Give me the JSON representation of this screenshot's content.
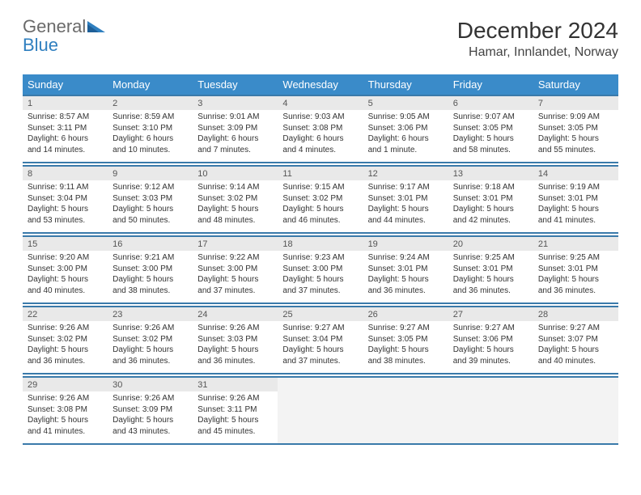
{
  "brand": {
    "general": "General",
    "blue": "Blue"
  },
  "header": {
    "month_title": "December 2024",
    "location": "Hamar, Innlandet, Norway"
  },
  "weekdays": [
    "Sunday",
    "Monday",
    "Tuesday",
    "Wednesday",
    "Thursday",
    "Friday",
    "Saturday"
  ],
  "colors": {
    "header_bg": "#3a8bc9",
    "header_text": "#ffffff",
    "rule": "#3a7aaa",
    "daynum_bg": "#e9e9e9",
    "logo_gray": "#6a6a6a",
    "logo_blue": "#2f7fbf"
  },
  "weeks": [
    [
      {
        "n": "1",
        "sr": "8:57 AM",
        "ss": "3:11 PM",
        "dl": "6 hours and 14 minutes."
      },
      {
        "n": "2",
        "sr": "8:59 AM",
        "ss": "3:10 PM",
        "dl": "6 hours and 10 minutes."
      },
      {
        "n": "3",
        "sr": "9:01 AM",
        "ss": "3:09 PM",
        "dl": "6 hours and 7 minutes."
      },
      {
        "n": "4",
        "sr": "9:03 AM",
        "ss": "3:08 PM",
        "dl": "6 hours and 4 minutes."
      },
      {
        "n": "5",
        "sr": "9:05 AM",
        "ss": "3:06 PM",
        "dl": "6 hours and 1 minute."
      },
      {
        "n": "6",
        "sr": "9:07 AM",
        "ss": "3:05 PM",
        "dl": "5 hours and 58 minutes."
      },
      {
        "n": "7",
        "sr": "9:09 AM",
        "ss": "3:05 PM",
        "dl": "5 hours and 55 minutes."
      }
    ],
    [
      {
        "n": "8",
        "sr": "9:11 AM",
        "ss": "3:04 PM",
        "dl": "5 hours and 53 minutes."
      },
      {
        "n": "9",
        "sr": "9:12 AM",
        "ss": "3:03 PM",
        "dl": "5 hours and 50 minutes."
      },
      {
        "n": "10",
        "sr": "9:14 AM",
        "ss": "3:02 PM",
        "dl": "5 hours and 48 minutes."
      },
      {
        "n": "11",
        "sr": "9:15 AM",
        "ss": "3:02 PM",
        "dl": "5 hours and 46 minutes."
      },
      {
        "n": "12",
        "sr": "9:17 AM",
        "ss": "3:01 PM",
        "dl": "5 hours and 44 minutes."
      },
      {
        "n": "13",
        "sr": "9:18 AM",
        "ss": "3:01 PM",
        "dl": "5 hours and 42 minutes."
      },
      {
        "n": "14",
        "sr": "9:19 AM",
        "ss": "3:01 PM",
        "dl": "5 hours and 41 minutes."
      }
    ],
    [
      {
        "n": "15",
        "sr": "9:20 AM",
        "ss": "3:00 PM",
        "dl": "5 hours and 40 minutes."
      },
      {
        "n": "16",
        "sr": "9:21 AM",
        "ss": "3:00 PM",
        "dl": "5 hours and 38 minutes."
      },
      {
        "n": "17",
        "sr": "9:22 AM",
        "ss": "3:00 PM",
        "dl": "5 hours and 37 minutes."
      },
      {
        "n": "18",
        "sr": "9:23 AM",
        "ss": "3:00 PM",
        "dl": "5 hours and 37 minutes."
      },
      {
        "n": "19",
        "sr": "9:24 AM",
        "ss": "3:01 PM",
        "dl": "5 hours and 36 minutes."
      },
      {
        "n": "20",
        "sr": "9:25 AM",
        "ss": "3:01 PM",
        "dl": "5 hours and 36 minutes."
      },
      {
        "n": "21",
        "sr": "9:25 AM",
        "ss": "3:01 PM",
        "dl": "5 hours and 36 minutes."
      }
    ],
    [
      {
        "n": "22",
        "sr": "9:26 AM",
        "ss": "3:02 PM",
        "dl": "5 hours and 36 minutes."
      },
      {
        "n": "23",
        "sr": "9:26 AM",
        "ss": "3:02 PM",
        "dl": "5 hours and 36 minutes."
      },
      {
        "n": "24",
        "sr": "9:26 AM",
        "ss": "3:03 PM",
        "dl": "5 hours and 36 minutes."
      },
      {
        "n": "25",
        "sr": "9:27 AM",
        "ss": "3:04 PM",
        "dl": "5 hours and 37 minutes."
      },
      {
        "n": "26",
        "sr": "9:27 AM",
        "ss": "3:05 PM",
        "dl": "5 hours and 38 minutes."
      },
      {
        "n": "27",
        "sr": "9:27 AM",
        "ss": "3:06 PM",
        "dl": "5 hours and 39 minutes."
      },
      {
        "n": "28",
        "sr": "9:27 AM",
        "ss": "3:07 PM",
        "dl": "5 hours and 40 minutes."
      }
    ],
    [
      {
        "n": "29",
        "sr": "9:26 AM",
        "ss": "3:08 PM",
        "dl": "5 hours and 41 minutes."
      },
      {
        "n": "30",
        "sr": "9:26 AM",
        "ss": "3:09 PM",
        "dl": "5 hours and 43 minutes."
      },
      {
        "n": "31",
        "sr": "9:26 AM",
        "ss": "3:11 PM",
        "dl": "5 hours and 45 minutes."
      },
      null,
      null,
      null,
      null
    ]
  ],
  "labels": {
    "sunrise": "Sunrise:",
    "sunset": "Sunset:",
    "daylight": "Daylight:"
  }
}
